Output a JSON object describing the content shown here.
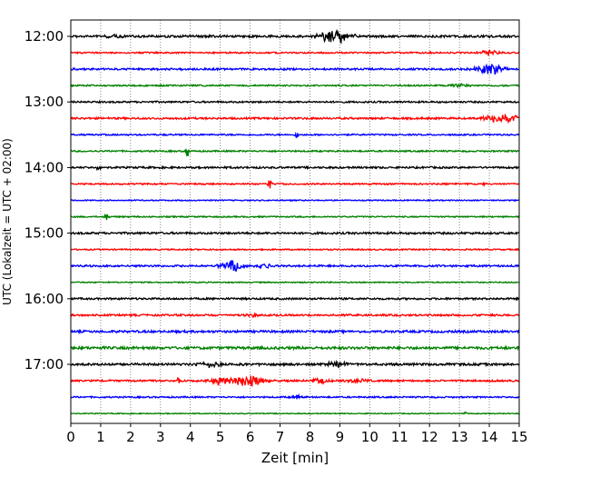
{
  "chart_data": {
    "type": "line",
    "title": "",
    "xlabel": "Zeit  [min]",
    "ylabel": "UTC (Lokalzeit = UTC + 02:00)",
    "xlim": [
      0,
      15
    ],
    "x_ticks": [
      "0",
      "1",
      "2",
      "3",
      "4",
      "5",
      "6",
      "7",
      "8",
      "9",
      "10",
      "11",
      "12",
      "13",
      "14",
      "15"
    ],
    "y_ticks": [
      "12:00",
      "13:00",
      "14:00",
      "15:00",
      "16:00",
      "17:00"
    ],
    "grid": "vertical dotted",
    "trace_interval_minutes": 15,
    "first_trace": "12:00",
    "colors": [
      "#000000",
      "#ff0000",
      "#0000ff",
      "#008000"
    ],
    "traces": [
      {
        "start": "12:00",
        "color": "#000000",
        "noise": 1.2,
        "events": [
          {
            "t": 1.4,
            "amp": 1.5,
            "w": 0.4
          },
          {
            "t": 8.9,
            "amp": 6,
            "w": 0.5
          },
          {
            "t": 8.6,
            "amp": 3,
            "w": 0.4
          }
        ]
      },
      {
        "start": "12:15",
        "color": "#ff0000",
        "noise": 0.8,
        "events": [
          {
            "t": 14.0,
            "amp": 3,
            "w": 0.3
          }
        ]
      },
      {
        "start": "12:30",
        "color": "#0000ff",
        "noise": 1.0,
        "events": [
          {
            "t": 14.0,
            "amp": 6,
            "w": 0.45
          }
        ]
      },
      {
        "start": "12:45",
        "color": "#008000",
        "noise": 0.8,
        "events": [
          {
            "t": 13.0,
            "amp": 2,
            "w": 0.3
          }
        ]
      },
      {
        "start": "13:00",
        "color": "#000000",
        "noise": 0.9,
        "events": []
      },
      {
        "start": "13:15",
        "color": "#ff0000",
        "noise": 1.0,
        "events": [
          {
            "t": 14.4,
            "amp": 5,
            "w": 0.6
          }
        ]
      },
      {
        "start": "13:30",
        "color": "#0000ff",
        "noise": 0.8,
        "events": [
          {
            "t": 7.55,
            "amp": 5,
            "w": 0.05
          }
        ]
      },
      {
        "start": "13:45",
        "color": "#008000",
        "noise": 0.8,
        "events": [
          {
            "t": 3.9,
            "amp": 7,
            "w": 0.06
          }
        ]
      },
      {
        "start": "14:00",
        "color": "#000000",
        "noise": 1.0,
        "events": [
          {
            "t": 0.9,
            "amp": 2,
            "w": 0.1
          }
        ]
      },
      {
        "start": "14:15",
        "color": "#ff0000",
        "noise": 0.8,
        "events": [
          {
            "t": 6.65,
            "amp": 6,
            "w": 0.07
          },
          {
            "t": 13.85,
            "amp": 3,
            "w": 0.05
          }
        ]
      },
      {
        "start": "14:30",
        "color": "#0000ff",
        "noise": 0.6,
        "events": []
      },
      {
        "start": "14:45",
        "color": "#008000",
        "noise": 0.7,
        "events": [
          {
            "t": 1.2,
            "amp": 4,
            "w": 0.08
          }
        ]
      },
      {
        "start": "15:00",
        "color": "#000000",
        "noise": 1.1,
        "events": []
      },
      {
        "start": "15:15",
        "color": "#ff0000",
        "noise": 0.7,
        "events": []
      },
      {
        "start": "15:30",
        "color": "#0000ff",
        "noise": 1.0,
        "events": [
          {
            "t": 5.4,
            "amp": 6,
            "w": 0.35
          },
          {
            "t": 6.5,
            "amp": 3,
            "w": 0.25
          }
        ]
      },
      {
        "start": "15:45",
        "color": "#008000",
        "noise": 0.6,
        "events": []
      },
      {
        "start": "16:00",
        "color": "#000000",
        "noise": 1.0,
        "events": []
      },
      {
        "start": "16:15",
        "color": "#ff0000",
        "noise": 1.0,
        "events": [
          {
            "t": 6.1,
            "amp": 2,
            "w": 0.2
          }
        ]
      },
      {
        "start": "16:30",
        "color": "#0000ff",
        "noise": 1.2,
        "events": []
      },
      {
        "start": "16:45",
        "color": "#008000",
        "noise": 1.4,
        "events": []
      },
      {
        "start": "17:00",
        "color": "#000000",
        "noise": 1.2,
        "events": [
          {
            "t": 4.7,
            "amp": 3,
            "w": 0.4
          },
          {
            "t": 8.9,
            "amp": 3.5,
            "w": 0.35
          }
        ]
      },
      {
        "start": "17:15",
        "color": "#ff0000",
        "noise": 1.0,
        "events": [
          {
            "t": 3.6,
            "amp": 5,
            "w": 0.05
          },
          {
            "t": 5.0,
            "amp": 4,
            "w": 0.4
          },
          {
            "t": 5.9,
            "amp": 7,
            "w": 0.5
          },
          {
            "t": 8.3,
            "amp": 2.5,
            "w": 0.3
          },
          {
            "t": 9.6,
            "amp": 3,
            "w": 0.3
          }
        ]
      },
      {
        "start": "17:30",
        "color": "#0000ff",
        "noise": 0.8,
        "events": [
          {
            "t": 7.6,
            "amp": 2,
            "w": 0.2
          }
        ]
      },
      {
        "start": "17:45",
        "color": "#008000",
        "noise": 0.5,
        "events": [
          {
            "t": 13.2,
            "amp": 1.5,
            "w": 0.05
          }
        ]
      }
    ]
  }
}
